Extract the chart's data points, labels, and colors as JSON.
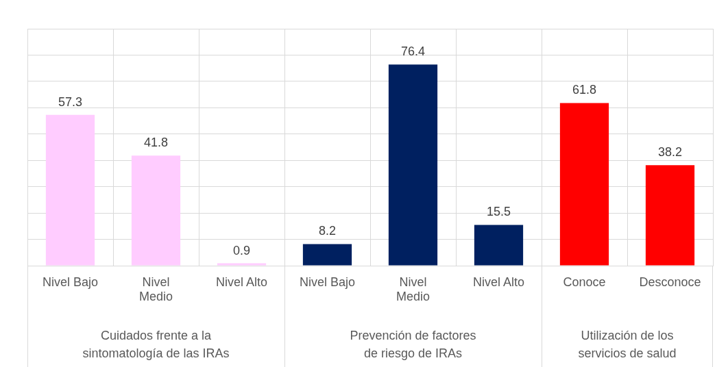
{
  "chart_data": [
    {
      "type": "bar",
      "categories": [
        "Nivel Bajo",
        "Nivel Medio",
        "Nivel Alto"
      ],
      "values": [
        57.3,
        41.8,
        0.9
      ],
      "color": "#ffccff",
      "xlabel": "Cuidados frente a la sintomatología de las IRAs",
      "ylim": [
        0,
        90
      ],
      "tick_labels": "x",
      "grid": true,
      "data_labels": true
    },
    {
      "type": "bar",
      "categories": [
        "Nivel Bajo",
        "Nivel Medio",
        "Nivel Alto"
      ],
      "values": [
        8.2,
        76.4,
        15.5
      ],
      "color": "#002060",
      "xlabel": "Prevención de factores de riesgo de IRAs",
      "ylim": [
        0,
        90
      ],
      "tick_labels": "x",
      "grid": true,
      "data_labels": true
    },
    {
      "type": "bar",
      "categories": [
        "Conoce",
        "Desconoce"
      ],
      "values": [
        61.8,
        38.2
      ],
      "color": "#ff0000",
      "xlabel": "Utilización de los servicios de salud",
      "ylim": [
        0,
        90
      ],
      "tick_labels": "x",
      "grid": true,
      "data_labels": true
    }
  ]
}
